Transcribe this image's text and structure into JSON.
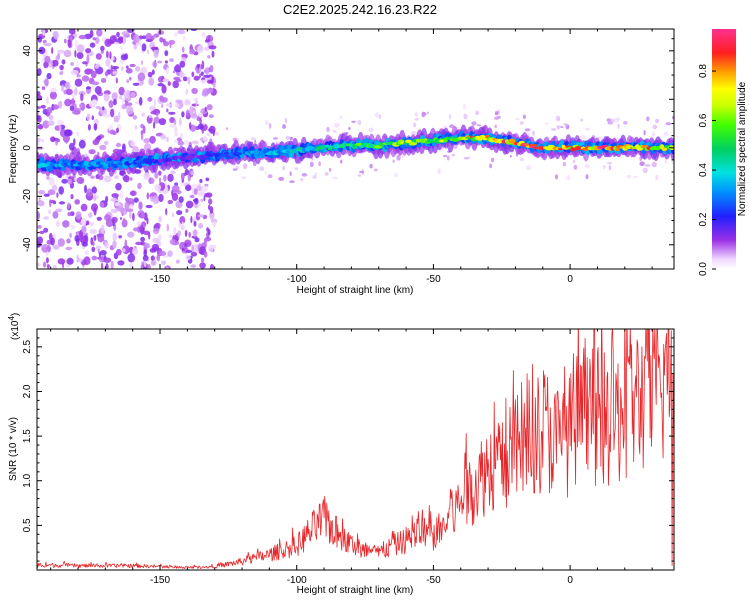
{
  "title": "C2E2.2025.242.16.23.R22",
  "colors": {
    "snr_line": "#e8262a",
    "signal_low": "#6a1bd6",
    "frame": "#000000"
  },
  "chart_data": [
    {
      "type": "heatmap",
      "name": "spectrogram",
      "xlabel": "Height of straight line (km)",
      "ylabel": "Frequency (Hz)",
      "xlim": [
        -195,
        38
      ],
      "ylim": [
        -50,
        49
      ],
      "xticks": [
        -150,
        -100,
        -50,
        0
      ],
      "yticks": [
        -40,
        -20,
        0,
        20,
        40
      ],
      "colorbar": {
        "label": "Normalized spectral amplitude",
        "range": [
          0,
          0.97
        ],
        "ticks": [
          "0.0",
          "0.2",
          "0.4",
          "0.6",
          "0.8"
        ],
        "tick_values": [
          0.0,
          0.2,
          0.4,
          0.6,
          0.8
        ]
      },
      "signal_track": {
        "x": [
          -195,
          -175,
          -160,
          -150,
          -140,
          -130,
          -120,
          -110,
          -100,
          -90,
          -80,
          -70,
          -60,
          -50,
          -40,
          -30,
          -20,
          -10,
          0,
          10,
          20,
          30,
          38
        ],
        "freq": [
          -7,
          -7,
          -6,
          -5,
          -4,
          -3,
          -2,
          -2,
          -1,
          0,
          1,
          1,
          2,
          3,
          4,
          4,
          2,
          0,
          0,
          0,
          0,
          0,
          0
        ],
        "amplitude": [
          0.35,
          0.35,
          0.3,
          0.2,
          0.15,
          0.2,
          0.3,
          0.35,
          0.4,
          0.5,
          0.55,
          0.6,
          0.65,
          0.7,
          0.75,
          0.8,
          0.9,
          0.85,
          0.85,
          0.9,
          0.85,
          0.8,
          0.6
        ]
      },
      "noise_region_x": [
        -195,
        -130
      ]
    },
    {
      "type": "line",
      "name": "snr",
      "xlabel": "Height of straight line (km)",
      "ylabel": "SNR (10 * v/v)",
      "y_scale_label": "(x10",
      "y_scale_exp": "4",
      "xlim": [
        -195,
        38
      ],
      "ylim": [
        0,
        2.7
      ],
      "xticks": [
        -150,
        -100,
        -50,
        0
      ],
      "yticks": [
        "0.5",
        "1.0",
        "1.5",
        "2.0",
        "2.5"
      ],
      "ytick_values": [
        0.5,
        1.0,
        1.5,
        2.0,
        2.5
      ],
      "series": [
        {
          "name": "SNR",
          "x": [
            -195,
            -180,
            -160,
            -140,
            -130,
            -120,
            -110,
            -100,
            -95,
            -90,
            -85,
            -80,
            -75,
            -70,
            -60,
            -55,
            -50,
            -45,
            -40,
            -35,
            -30,
            -27,
            -25,
            -20,
            -15,
            -10,
            -5,
            0,
            5,
            10,
            15,
            20,
            25,
            30,
            35,
            37,
            38
          ],
          "y": [
            0.06,
            0.05,
            0.05,
            0.03,
            0.04,
            0.1,
            0.18,
            0.28,
            0.45,
            0.6,
            0.42,
            0.3,
            0.22,
            0.2,
            0.35,
            0.45,
            0.4,
            0.55,
            0.8,
            1.0,
            1.2,
            1.3,
            1.2,
            1.4,
            1.45,
            1.7,
            1.5,
            1.6,
            1.75,
            1.8,
            1.7,
            1.9,
            2.0,
            2.05,
            2.2,
            2.6,
            0.1
          ],
          "color": "#e8262a"
        }
      ]
    }
  ]
}
